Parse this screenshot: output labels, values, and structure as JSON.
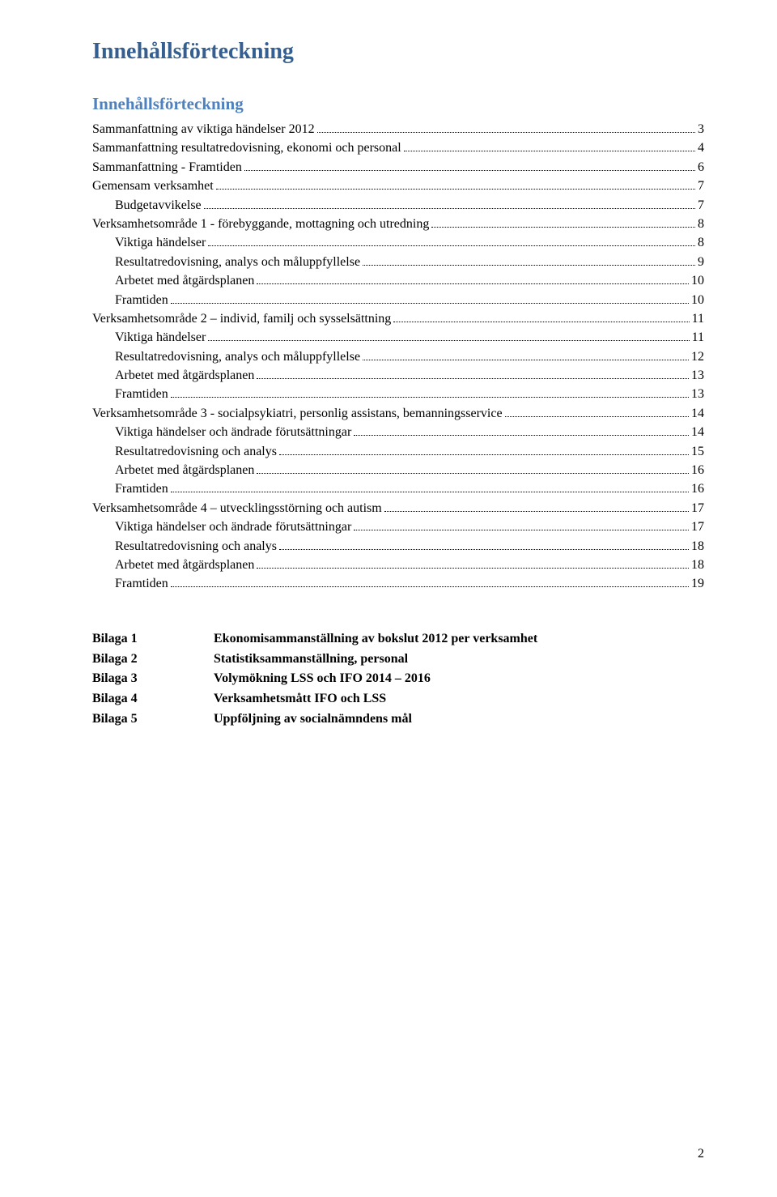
{
  "mainTitle": "Innehållsförteckning",
  "subTitle": "Innehållsförteckning",
  "toc": [
    {
      "level": 1,
      "label": "Sammanfattning av viktiga händelser 2012",
      "page": "3"
    },
    {
      "level": 1,
      "label": "Sammanfattning resultatredovisning, ekonomi och personal",
      "page": "4"
    },
    {
      "level": 1,
      "label": "Sammanfattning - Framtiden",
      "page": "6"
    },
    {
      "level": 1,
      "label": "Gemensam verksamhet",
      "page": "7"
    },
    {
      "level": 2,
      "label": "Budgetavvikelse",
      "page": "7"
    },
    {
      "level": 1,
      "label": "Verksamhetsområde 1 - förebyggande, mottagning och utredning",
      "page": "8"
    },
    {
      "level": 2,
      "label": "Viktiga händelser",
      "page": "8"
    },
    {
      "level": 2,
      "label": "Resultatredovisning, analys och måluppfyllelse",
      "page": "9"
    },
    {
      "level": 2,
      "label": "Arbetet med åtgärdsplanen",
      "page": "10"
    },
    {
      "level": 2,
      "label": "Framtiden",
      "page": "10"
    },
    {
      "level": 1,
      "label": "Verksamhetsområde 2 – individ, familj och sysselsättning",
      "page": "11"
    },
    {
      "level": 2,
      "label": "Viktiga händelser",
      "page": "11"
    },
    {
      "level": 2,
      "label": "Resultatredovisning, analys och måluppfyllelse",
      "page": "12"
    },
    {
      "level": 2,
      "label": "Arbetet med åtgärdsplanen",
      "page": "13"
    },
    {
      "level": 2,
      "label": "Framtiden",
      "page": "13"
    },
    {
      "level": 1,
      "label": "Verksamhetsområde 3 - socialpsykiatri, personlig assistans, bemanningsservice",
      "page": "14"
    },
    {
      "level": 2,
      "label": "Viktiga händelser och ändrade förutsättningar",
      "page": "14"
    },
    {
      "level": 2,
      "label": "Resultatredovisning och analys",
      "page": "15"
    },
    {
      "level": 2,
      "label": "Arbetet med åtgärdsplanen",
      "page": "16"
    },
    {
      "level": 2,
      "label": "Framtiden",
      "page": "16"
    },
    {
      "level": 1,
      "label": "Verksamhetsområde 4 – utvecklingsstörning och autism",
      "page": "17"
    },
    {
      "level": 2,
      "label": "Viktiga händelser och ändrade förutsättningar",
      "page": "17"
    },
    {
      "level": 2,
      "label": "Resultatredovisning och analys",
      "page": "18"
    },
    {
      "level": 2,
      "label": "Arbetet med åtgärdsplanen",
      "page": "18"
    },
    {
      "level": 2,
      "label": "Framtiden",
      "page": "19"
    }
  ],
  "bilaga": [
    {
      "key": "Bilaga 1",
      "value": "Ekonomisammanställning av bokslut 2012 per verksamhet"
    },
    {
      "key": "Bilaga 2",
      "value": "Statistiksammanställning, personal"
    },
    {
      "key": "Bilaga 3",
      "value": "Volymökning LSS och IFO 2014 – 2016"
    },
    {
      "key": "Bilaga 4",
      "value": "Verksamhetsmått IFO och LSS"
    },
    {
      "key": "Bilaga 5",
      "value": "Uppföljning av socialnämndens mål"
    }
  ],
  "pageNumber": "2",
  "colors": {
    "mainTitle": "#365f91",
    "subTitle": "#4f81bd",
    "text": "#000000",
    "background": "#ffffff"
  },
  "typography": {
    "fontFamily": "Times New Roman",
    "mainTitleSize": 28,
    "subTitleSize": 21,
    "bodySize": 16
  }
}
